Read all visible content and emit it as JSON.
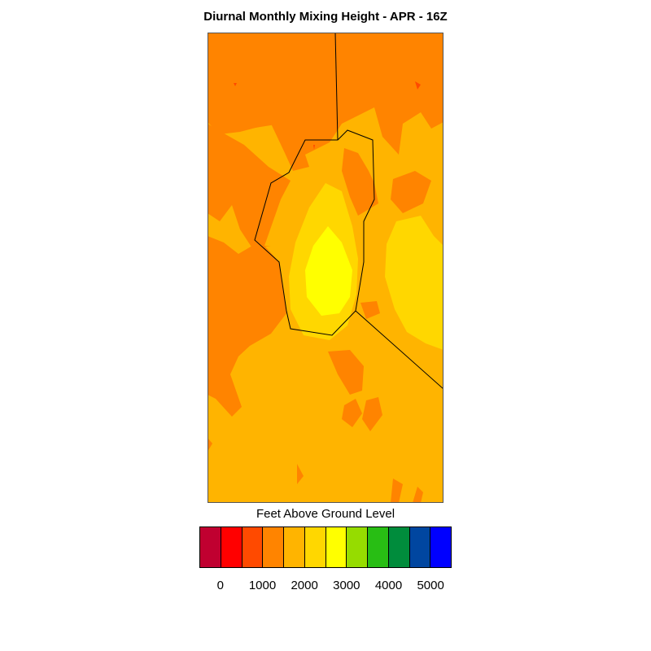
{
  "title": "Diurnal Monthly Mixing Height - APR - 16Z",
  "legend": {
    "label": "Feet Above Ground Level",
    "colors": [
      "#c00030",
      "#ff0000",
      "#ff4a00",
      "#ff8400",
      "#ffb400",
      "#ffd700",
      "#ffff00",
      "#96dc00",
      "#28be14",
      "#008c3c",
      "#0046a0",
      "#0000ff"
    ],
    "tick_labels": [
      "0",
      "1000",
      "2000",
      "3000",
      "4000",
      "5000"
    ],
    "tick_values": [
      0,
      1000,
      2000,
      3000,
      4000,
      5000
    ]
  },
  "map": {
    "dominant_fill": "#ffb400",
    "features": [
      {
        "name": "lower-mixing-height-zones",
        "level": "1500-2000",
        "color": "#ff8400"
      },
      {
        "name": "peak-mixing-height-core",
        "level": "2500-3000",
        "color": "#ffff00"
      },
      {
        "name": "elevated-mixing-height-ring",
        "level": "2000-2500",
        "color": "#ffd700"
      },
      {
        "name": "local-minimum-spots",
        "level": "1000-1500",
        "color": "#ff4a00"
      }
    ]
  }
}
